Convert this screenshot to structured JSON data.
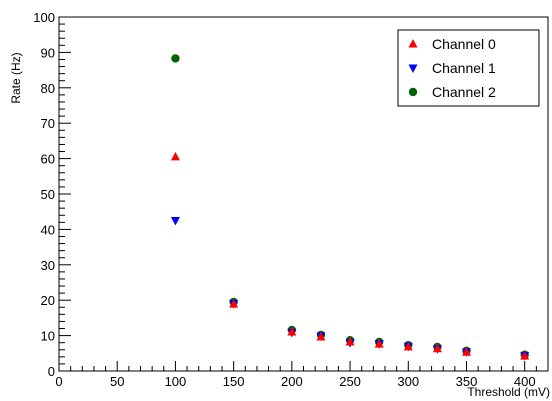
{
  "chart_data": {
    "type": "scatter",
    "title": "",
    "xlabel": "Threshold (mV)",
    "ylabel": "Rate (Hz)",
    "xlim": [
      0,
      420
    ],
    "ylim": [
      0,
      100
    ],
    "x_ticks": [
      0,
      50,
      100,
      150,
      200,
      250,
      300,
      350,
      400
    ],
    "x_tick_labels": [
      "0",
      "50",
      "100",
      "150",
      "200",
      "250",
      "300",
      "350",
      "400"
    ],
    "y_ticks": [
      0,
      10,
      20,
      30,
      40,
      50,
      60,
      70,
      80,
      90,
      100
    ],
    "y_tick_labels": [
      "0",
      "10",
      "20",
      "30",
      "40",
      "50",
      "60",
      "70",
      "80",
      "90",
      "100"
    ],
    "grid": false,
    "legend_position": "top-right",
    "series": [
      {
        "name": "Channel 0",
        "marker": "triangle-up",
        "color": "#ff0000",
        "x": [
          100,
          150,
          200,
          225,
          250,
          275,
          300,
          325,
          350,
          400
        ],
        "y": [
          60.5,
          18.9,
          11.0,
          9.6,
          8.2,
          7.6,
          6.8,
          6.3,
          5.3,
          4.2
        ]
      },
      {
        "name": "Channel 1",
        "marker": "triangle-down",
        "color": "#0000ff",
        "x": [
          100,
          150,
          200,
          225,
          250,
          275,
          300,
          325,
          350,
          400
        ],
        "y": [
          42.5,
          19.1,
          10.9,
          9.9,
          8.0,
          7.7,
          7.0,
          6.3,
          5.4,
          4.4
        ]
      },
      {
        "name": "Channel 2",
        "marker": "circle",
        "color": "#006400",
        "x": [
          100,
          150,
          200,
          225,
          250,
          275,
          300,
          325,
          350,
          400
        ],
        "y": [
          88.3,
          19.5,
          11.6,
          10.2,
          8.7,
          8.2,
          7.3,
          6.8,
          5.7,
          4.6
        ]
      }
    ]
  }
}
